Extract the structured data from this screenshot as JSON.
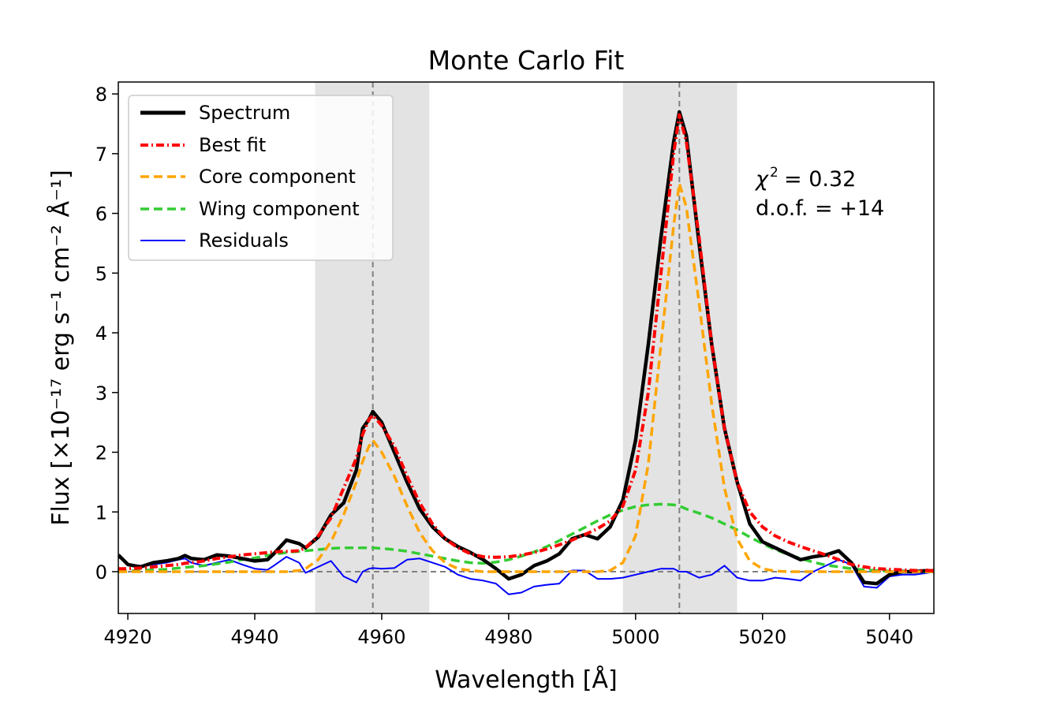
{
  "chart_data": {
    "type": "line",
    "title": "Monte Carlo Fit",
    "xlabel": "Wavelength [Å]",
    "ylabel": "Flux [×10⁻¹⁷ erg s⁻¹ cm⁻² Å⁻¹]",
    "xlim": [
      4918.5,
      5047
    ],
    "ylim": [
      -0.7,
      8.2
    ],
    "xticks": [
      4920,
      4940,
      4960,
      4980,
      5000,
      5020,
      5040
    ],
    "yticks": [
      0,
      1,
      2,
      3,
      4,
      5,
      6,
      7,
      8
    ],
    "shaded_regions": [
      [
        4949.5,
        4967.5
      ],
      [
        4998,
        5016
      ]
    ],
    "vertical_lines": [
      4958.6,
      5006.9
    ],
    "legend": [
      "Spectrum",
      "Best fit",
      "Core component",
      "Wing component",
      "Residuals"
    ],
    "legend_position": "upper-left",
    "annotation": {
      "chi2": "= 0.32",
      "chi_symbol": "χ",
      "chi_exp": "2",
      "dof": "d.o.f. = +14"
    },
    "x": [
      4918.5,
      4920,
      4922,
      4924,
      4926,
      4928,
      4929,
      4930,
      4932,
      4934,
      4936,
      4938,
      4940,
      4942,
      4943,
      4945,
      4947,
      4948,
      4950,
      4952,
      4954,
      4956,
      4957,
      4958,
      4958.6,
      4960,
      4962,
      4964,
      4966,
      4968,
      4970,
      4972,
      4974,
      4976,
      4978,
      4980,
      4982,
      4984,
      4986,
      4988,
      4990,
      4992,
      4994,
      4996,
      4998,
      5000,
      5002,
      5004,
      5006,
      5006.9,
      5008,
      5010,
      5012,
      5014,
      5016,
      5018,
      5020,
      5022,
      5024,
      5026,
      5028,
      5030,
      5032,
      5034,
      5036,
      5038,
      5040,
      5042,
      5044,
      5046,
      5047
    ],
    "series": [
      {
        "name": "Spectrum",
        "color": "#000000",
        "values": [
          0.28,
          0.12,
          0.08,
          0.15,
          0.18,
          0.22,
          0.27,
          0.22,
          0.2,
          0.28,
          0.26,
          0.22,
          0.18,
          0.2,
          0.3,
          0.53,
          0.47,
          0.4,
          0.58,
          0.95,
          1.15,
          1.7,
          2.4,
          2.55,
          2.68,
          2.5,
          2.0,
          1.5,
          1.05,
          0.75,
          0.55,
          0.42,
          0.32,
          0.2,
          0.05,
          -0.12,
          -0.05,
          0.1,
          0.18,
          0.3,
          0.55,
          0.62,
          0.55,
          0.75,
          1.2,
          2.2,
          3.8,
          5.6,
          7.2,
          7.7,
          7.3,
          5.5,
          3.8,
          2.4,
          1.5,
          0.8,
          0.5,
          0.4,
          0.3,
          0.2,
          0.25,
          0.28,
          0.35,
          0.15,
          -0.18,
          -0.2,
          -0.05,
          0.0,
          0.0,
          0.02,
          0.0
        ]
      },
      {
        "name": "Best fit",
        "color": "#ff0000",
        "values": [
          0.05,
          0.05,
          0.06,
          0.08,
          0.1,
          0.12,
          0.14,
          0.15,
          0.18,
          0.22,
          0.25,
          0.28,
          0.3,
          0.32,
          0.33,
          0.34,
          0.35,
          0.4,
          0.6,
          0.9,
          1.4,
          1.9,
          2.3,
          2.55,
          2.62,
          2.45,
          2.1,
          1.6,
          1.15,
          0.8,
          0.55,
          0.4,
          0.3,
          0.25,
          0.24,
          0.25,
          0.28,
          0.32,
          0.38,
          0.45,
          0.53,
          0.62,
          0.72,
          0.85,
          1.1,
          1.7,
          3.0,
          5.0,
          7.0,
          7.65,
          7.2,
          5.6,
          3.8,
          2.4,
          1.5,
          1.0,
          0.75,
          0.6,
          0.5,
          0.42,
          0.35,
          0.28,
          0.2,
          0.12,
          0.08,
          0.05,
          0.04,
          0.03,
          0.02,
          0.02,
          0.02
        ]
      },
      {
        "name": "Core component",
        "color": "#ffa500",
        "values": [
          0,
          0,
          0,
          0,
          0,
          0,
          0,
          0,
          0,
          0,
          0,
          0,
          0,
          0,
          0,
          0,
          0.02,
          0.05,
          0.2,
          0.5,
          0.95,
          1.5,
          1.85,
          2.1,
          2.2,
          2.0,
          1.6,
          1.1,
          0.65,
          0.35,
          0.15,
          0.05,
          0.02,
          0,
          0,
          0,
          0,
          0,
          0,
          0,
          0,
          0,
          0,
          0.02,
          0.15,
          0.6,
          1.8,
          3.8,
          5.8,
          6.5,
          6.1,
          4.5,
          2.8,
          1.4,
          0.55,
          0.18,
          0.05,
          0.01,
          0,
          0,
          0,
          0,
          0,
          0,
          0,
          0,
          0,
          0,
          0,
          0,
          0
        ]
      },
      {
        "name": "Wing component",
        "color": "#33cc33",
        "values": [
          0,
          0.01,
          0.02,
          0.03,
          0.04,
          0.06,
          0.07,
          0.08,
          0.1,
          0.13,
          0.16,
          0.2,
          0.23,
          0.27,
          0.29,
          0.32,
          0.34,
          0.35,
          0.37,
          0.39,
          0.4,
          0.4,
          0.4,
          0.4,
          0.4,
          0.39,
          0.37,
          0.34,
          0.3,
          0.26,
          0.22,
          0.18,
          0.15,
          0.14,
          0.16,
          0.2,
          0.26,
          0.33,
          0.42,
          0.52,
          0.63,
          0.74,
          0.85,
          0.95,
          1.03,
          1.09,
          1.12,
          1.13,
          1.12,
          1.1,
          1.05,
          0.98,
          0.9,
          0.8,
          0.7,
          0.58,
          0.47,
          0.37,
          0.29,
          0.22,
          0.16,
          0.11,
          0.08,
          0.05,
          0.03,
          0.02,
          0.01,
          0.01,
          0.0,
          0.0,
          0.0
        ]
      },
      {
        "name": "Residuals",
        "color": "#0000ff",
        "values": [
          0.25,
          0.12,
          0.1,
          0.12,
          0.15,
          0.2,
          0.22,
          0.15,
          0.1,
          0.15,
          0.2,
          0.12,
          0.05,
          0.03,
          0.1,
          0.25,
          0.15,
          -0.02,
          0.08,
          0.18,
          -0.08,
          -0.18,
          0.0,
          0.05,
          0.06,
          0.05,
          0.06,
          0.2,
          0.22,
          0.15,
          0.08,
          -0.05,
          -0.12,
          -0.15,
          -0.2,
          -0.38,
          -0.35,
          -0.25,
          -0.22,
          -0.2,
          0.02,
          0.02,
          -0.12,
          -0.12,
          -0.1,
          -0.05,
          0.0,
          0.05,
          0.05,
          0.0,
          0.0,
          -0.1,
          -0.05,
          0.1,
          -0.1,
          -0.15,
          -0.15,
          -0.1,
          -0.12,
          -0.15,
          0.0,
          0.1,
          0.2,
          0.12,
          -0.25,
          -0.27,
          -0.08,
          -0.05,
          -0.05,
          -0.02,
          0.0
        ]
      }
    ]
  }
}
